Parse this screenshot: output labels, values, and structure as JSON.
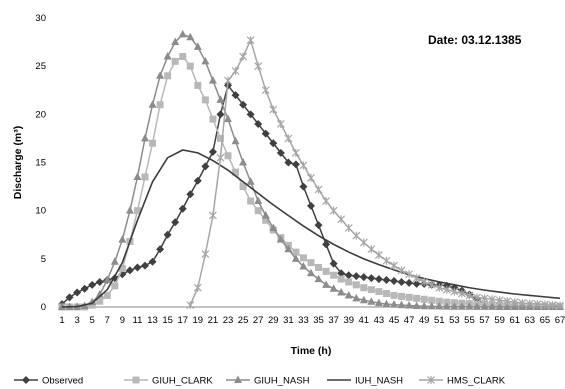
{
  "chart_data": {
    "type": "line",
    "title": "",
    "annotation": "Date: 03.12.1385",
    "xlabel": "Time (h)",
    "ylabel": "Discharge (m³)",
    "ylim": [
      0,
      30
    ],
    "yticks": [
      0,
      5,
      10,
      15,
      20,
      25,
      30
    ],
    "xlim": [
      1,
      67
    ],
    "xticks": [
      1,
      3,
      5,
      7,
      9,
      11,
      13,
      15,
      17,
      19,
      21,
      23,
      25,
      27,
      29,
      31,
      33,
      35,
      37,
      39,
      41,
      43,
      45,
      47,
      49,
      51,
      53,
      55,
      57,
      59,
      61,
      63,
      65,
      67
    ],
    "grid": false,
    "legend_position": "bottom",
    "series": [
      {
        "name": "Observed",
        "color": "#404040",
        "marker": "diamond",
        "x": [
          1,
          2,
          3,
          4,
          5,
          6,
          7,
          8,
          9,
          10,
          11,
          12,
          13,
          14,
          15,
          16,
          17,
          18,
          19,
          20,
          21,
          22,
          23,
          24,
          25,
          26,
          27,
          28,
          29,
          30,
          31,
          32,
          33,
          34,
          35,
          36,
          37,
          38,
          39,
          40,
          41,
          42,
          43,
          44,
          45,
          46,
          47,
          48,
          49,
          50,
          51,
          52,
          53,
          54,
          55,
          56,
          57
        ],
        "y": [
          0.3,
          1.0,
          1.5,
          1.9,
          2.3,
          2.6,
          2.8,
          3.0,
          3.4,
          3.8,
          4.1,
          4.3,
          4.7,
          6.0,
          7.5,
          8.8,
          10.2,
          11.7,
          13.1,
          14.6,
          16.1,
          20.0,
          23.0,
          22.0,
          21.0,
          20.0,
          19.0,
          18.0,
          17.0,
          16.0,
          15.0,
          14.8,
          12.5,
          10.5,
          8.5,
          6.5,
          4.5,
          3.5,
          3.3,
          3.2,
          3.1,
          3.0,
          2.9,
          2.8,
          2.7,
          2.6,
          2.5,
          2.4,
          2.4,
          2.3,
          2.3,
          2.2,
          2.0,
          1.7,
          1.3,
          0.8,
          0.3
        ]
      },
      {
        "name": "GIUH_CLARK",
        "color": "#b8b8b8",
        "marker": "square",
        "x": [
          1,
          2,
          3,
          4,
          5,
          6,
          7,
          8,
          9,
          10,
          11,
          12,
          13,
          14,
          15,
          16,
          17,
          18,
          19,
          20,
          21,
          22,
          23,
          24,
          25,
          26,
          27,
          28,
          29,
          30,
          31,
          32,
          33,
          34,
          35,
          36,
          37,
          38,
          39,
          40,
          41,
          42,
          43,
          44,
          45,
          46,
          47,
          48,
          49,
          50,
          51,
          52,
          53,
          54,
          55,
          56,
          57,
          58,
          59,
          60,
          61,
          62,
          63,
          64,
          65,
          66,
          67
        ],
        "y": [
          0.0,
          0.0,
          0.0,
          0.0,
          0.2,
          0.6,
          1.2,
          2.2,
          4.0,
          6.8,
          10.0,
          13.5,
          17.0,
          21.0,
          24.0,
          25.5,
          26.0,
          25.0,
          23.0,
          21.5,
          19.5,
          17.5,
          15.7,
          14.0,
          12.5,
          11.0,
          10.0,
          9.0,
          8.0,
          7.2,
          6.4,
          5.7,
          5.1,
          4.6,
          4.1,
          3.7,
          3.3,
          2.9,
          2.6,
          2.3,
          2.0,
          1.8,
          1.6,
          1.4,
          1.2,
          1.1,
          1.0,
          0.9,
          0.8,
          0.7,
          0.6,
          0.5,
          0.45,
          0.4,
          0.35,
          0.3,
          0.25,
          0.2,
          0.18,
          0.15,
          0.12,
          0.1,
          0.08,
          0.06,
          0.05,
          0.04,
          0.03
        ]
      },
      {
        "name": "GIUH_NASH",
        "color": "#8c8c8c",
        "marker": "triangle",
        "x": [
          1,
          2,
          3,
          4,
          5,
          6,
          7,
          8,
          9,
          10,
          11,
          12,
          13,
          14,
          15,
          16,
          17,
          18,
          19,
          20,
          21,
          22,
          23,
          24,
          25,
          26,
          27,
          28,
          29,
          30,
          31,
          32,
          33,
          34,
          35,
          36,
          37,
          38,
          39,
          40,
          41,
          42,
          43,
          44,
          45,
          46,
          47,
          48,
          49,
          50,
          51,
          52,
          53,
          54,
          55,
          56,
          57,
          58,
          59,
          60,
          61,
          62,
          63,
          64,
          65,
          66,
          67
        ],
        "y": [
          0.0,
          0.0,
          0.0,
          0.1,
          0.5,
          1.3,
          2.8,
          4.7,
          7.0,
          10.0,
          13.5,
          17.5,
          21.0,
          24.0,
          26.0,
          27.5,
          28.3,
          28.0,
          27.0,
          25.5,
          23.5,
          21.5,
          19.5,
          17.2,
          15.0,
          13.0,
          11.0,
          9.5,
          8.2,
          7.0,
          6.0,
          5.0,
          4.2,
          3.5,
          2.9,
          2.3,
          1.9,
          1.5,
          1.2,
          0.9,
          0.7,
          0.55,
          0.4,
          0.3,
          0.25,
          0.2,
          0.15,
          0.1,
          0.08,
          0.06,
          0.05,
          0.04,
          0.03,
          0.02,
          0.02,
          0.01,
          0.01,
          0.01,
          0.0,
          0.0,
          0.0,
          0.0,
          0.0,
          0.0,
          0.0,
          0.0,
          0.0
        ]
      },
      {
        "name": "IUH_NASH",
        "color": "#3c3c3c",
        "marker": "none",
        "x": [
          1,
          3,
          5,
          7,
          9,
          11,
          13,
          15,
          17,
          19,
          21,
          23,
          25,
          27,
          29,
          31,
          33,
          35,
          37,
          39,
          41,
          43,
          45,
          47,
          49,
          51,
          53,
          55,
          57,
          59,
          61,
          63,
          65,
          67
        ],
        "y": [
          0.0,
          0.05,
          0.4,
          1.8,
          4.6,
          9.0,
          13.0,
          15.5,
          16.3,
          16.0,
          15.2,
          14.2,
          13.0,
          11.8,
          10.6,
          9.5,
          8.4,
          7.4,
          6.5,
          5.7,
          5.0,
          4.4,
          3.85,
          3.35,
          2.95,
          2.6,
          2.3,
          2.0,
          1.75,
          1.55,
          1.35,
          1.2,
          1.05,
          0.9
        ]
      },
      {
        "name": "HMS_CLARK",
        "color": "#a6a6a6",
        "marker": "star",
        "x": [
          18,
          19,
          20,
          21,
          22,
          23,
          24,
          25,
          26,
          27,
          28,
          29,
          30,
          31,
          32,
          33,
          34,
          35,
          36,
          37,
          38,
          39,
          40,
          41,
          42,
          43,
          44,
          45,
          46,
          47,
          48,
          49,
          50,
          51,
          52,
          53,
          54,
          55,
          56,
          57,
          58,
          59,
          60,
          61,
          62,
          63,
          64,
          65,
          66,
          67
        ],
        "y": [
          0.2,
          2.0,
          5.5,
          9.5,
          15.5,
          23.5,
          24.5,
          26.0,
          27.7,
          25.0,
          22.5,
          20.5,
          19.0,
          17.5,
          16.0,
          14.7,
          13.4,
          12.2,
          11.0,
          10.0,
          9.1,
          8.2,
          7.4,
          6.7,
          6.0,
          5.4,
          4.8,
          4.3,
          3.8,
          3.4,
          3.0,
          2.6,
          2.3,
          2.0,
          1.8,
          1.6,
          1.4,
          1.2,
          1.0,
          0.9,
          0.8,
          0.7,
          0.6,
          0.5,
          0.42,
          0.35,
          0.3,
          0.25,
          0.2,
          0.15
        ]
      }
    ]
  }
}
